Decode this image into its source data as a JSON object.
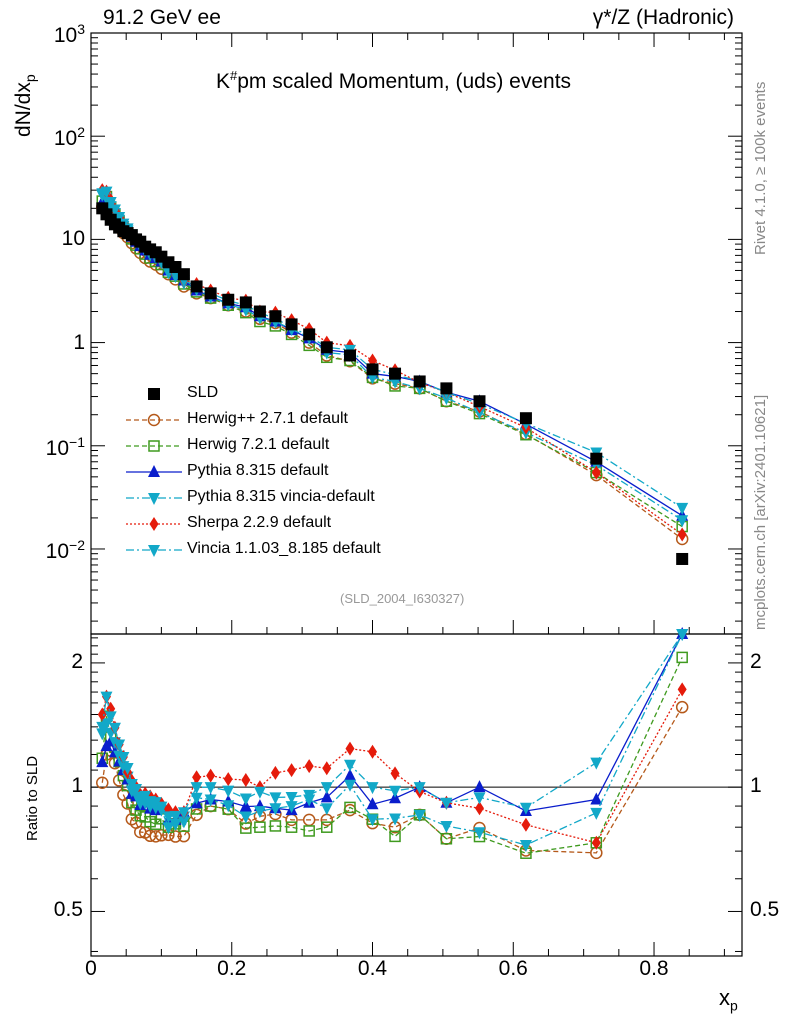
{
  "header": {
    "energy": "91.2 GeV ee",
    "process": "γ*/Z (Hadronic)"
  },
  "side_labels": {
    "rivet": "Rivet 4.1.0, ≥ 100k events",
    "mcplots": "mcplots.cern.ch [arXiv:2401.10621]"
  },
  "colors": {
    "SLD": "#000000",
    "Herwig++ 2.7.1 default": "#b5591a",
    "Herwig 7.2.1 default": "#3f9a1f",
    "Pythia 8.315 default": "#0a1dcc",
    "Pythia 8.315 vincia-default": "#12a8c8",
    "Sherpa 2.2.9 default": "#e51b0b",
    "Vincia 1.1.03_8.185 default": "#12a8c8"
  },
  "chart_data": [
    {
      "id": "main",
      "type": "scatter",
      "title": "K#pm scaled Momentum, (uds) events",
      "title_parts": {
        "base": "K",
        "sup": "#",
        "rest": "pm scaled Momentum, (uds) events"
      },
      "ylabel": "dN/dxp",
      "ylabel_parts": {
        "base": "dN/dx",
        "sub": "p"
      },
      "yscale": "log",
      "ylim": [
        0.0015,
        1000
      ],
      "xlim": [
        0,
        0.925
      ],
      "analysis_tag": "(SLD_2004_I630327)",
      "y_ticks": [
        {
          "v": 1000,
          "base": "10",
          "exp": "3"
        },
        {
          "v": 100,
          "base": "10",
          "exp": "2"
        },
        {
          "v": 10,
          "base": "10",
          "exp": ""
        },
        {
          "v": 1,
          "base": "1",
          "exp": ""
        },
        {
          "v": 0.1,
          "base": "10",
          "exp": "−1"
        },
        {
          "v": 0.01,
          "base": "10",
          "exp": "−2"
        }
      ],
      "legend": [
        "SLD",
        "Herwig++ 2.7.1 default",
        "Herwig 7.2.1 default",
        "Pythia 8.315 default",
        "Pythia 8.315 vincia-default",
        "Sherpa 2.2.9 default",
        "Vincia 1.1.03_8.185 default"
      ],
      "legend_position": "lower-left",
      "x": [
        0.016,
        0.022,
        0.028,
        0.034,
        0.04,
        0.046,
        0.052,
        0.058,
        0.064,
        0.07,
        0.077,
        0.084,
        0.092,
        0.1,
        0.11,
        0.12,
        0.132,
        0.15,
        0.17,
        0.195,
        0.22,
        0.24,
        0.262,
        0.285,
        0.31,
        0.335,
        0.368,
        0.4,
        0.432,
        0.467,
        0.505,
        0.552,
        0.618,
        0.718,
        0.84
      ],
      "series": [
        {
          "name": "SLD",
          "marker": "square",
          "line": "none",
          "values": [
            20,
            17.5,
            15.5,
            14,
            13,
            12,
            11.5,
            11,
            10,
            9.5,
            8.5,
            8,
            7.5,
            6.8,
            6,
            5.4,
            4.6,
            3.5,
            3.0,
            2.6,
            2.45,
            2.0,
            1.8,
            1.5,
            1.2,
            0.9,
            0.75,
            0.55,
            0.5,
            0.42,
            0.36,
            0.27,
            0.185,
            0.075,
            0.008
          ]
        },
        {
          "name": "Herwig++ 2.7.1 default",
          "marker": "circle-open",
          "line": "dashed",
          "values": [
            20.5,
            21,
            19,
            16,
            13.5,
            11.5,
            10.5,
            9.2,
            8.2,
            7.4,
            6.6,
            6.1,
            5.7,
            5.2,
            4.6,
            4.1,
            3.5,
            3.0,
            2.7,
            2.3,
            2.0,
            1.7,
            1.55,
            1.25,
            1.0,
            0.75,
            0.66,
            0.45,
            0.4,
            0.36,
            0.27,
            0.215,
            0.13,
            0.052,
            0.0125
          ]
        },
        {
          "name": "Herwig 7.2.1 default",
          "marker": "square-open",
          "line": "dashed",
          "values": [
            23.5,
            26,
            20.5,
            17.5,
            15,
            12.8,
            11.6,
            10.1,
            8.8,
            8.1,
            7.2,
            6.6,
            6.1,
            5.7,
            4.8,
            4.4,
            3.7,
            3.1,
            2.7,
            2.3,
            1.95,
            1.6,
            1.45,
            1.2,
            0.94,
            0.72,
            0.67,
            0.46,
            0.38,
            0.36,
            0.27,
            0.205,
            0.128,
            0.055,
            0.0165
          ]
        },
        {
          "name": "Pythia 8.315 default",
          "marker": "triangle-up",
          "line": "solid",
          "values": [
            23,
            22,
            20,
            17,
            15,
            13.2,
            12,
            10.6,
            9.5,
            8.6,
            7.8,
            7.1,
            6.6,
            6.1,
            5.0,
            4.5,
            4.0,
            3.2,
            2.8,
            2.4,
            2.2,
            1.8,
            1.6,
            1.32,
            1.1,
            0.85,
            0.8,
            0.5,
            0.47,
            0.42,
            0.33,
            0.27,
            0.162,
            0.07,
            0.021
          ]
        },
        {
          "name": "Pythia 8.315 vincia-default",
          "marker": "triangle-down",
          "line": "dashdot",
          "values": [
            27,
            25,
            21,
            18,
            15.5,
            13.5,
            12.2,
            10.8,
            9.6,
            8.7,
            7.8,
            7.2,
            6.7,
            6.0,
            4.8,
            4.4,
            3.8,
            3.3,
            2.8,
            2.35,
            2.08,
            1.75,
            1.6,
            1.35,
            1.12,
            0.8,
            0.76,
            0.46,
            0.42,
            0.36,
            0.29,
            0.21,
            0.134,
            0.065,
            0.019
          ]
        },
        {
          "name": "Sherpa 2.2.9 default",
          "marker": "diamond",
          "line": "dotted",
          "values": [
            30,
            29,
            24,
            19.5,
            16.5,
            14.2,
            12.5,
            11.4,
            10,
            9.1,
            8.2,
            7.6,
            7.0,
            6.2,
            5.3,
            4.7,
            4.0,
            3.7,
            3.2,
            2.72,
            2.55,
            2.0,
            1.95,
            1.65,
            1.35,
            1.0,
            0.93,
            0.67,
            0.54,
            0.41,
            0.33,
            0.24,
            0.15,
            0.055,
            0.0138
          ]
        },
        {
          "name": "Vincia 1.1.03_8.185 default",
          "marker": "triangle-down",
          "line": "dashdot",
          "values": [
            28,
            29,
            23,
            19.5,
            16.5,
            14.2,
            12.8,
            11.2,
            9.9,
            9.0,
            8.1,
            7.4,
            6.9,
            6.1,
            5.1,
            4.6,
            4.0,
            3.5,
            3.0,
            2.55,
            2.3,
            1.95,
            1.7,
            1.42,
            1.15,
            0.9,
            0.85,
            0.55,
            0.49,
            0.42,
            0.33,
            0.255,
            0.165,
            0.086,
            0.025
          ]
        }
      ]
    },
    {
      "id": "ratio",
      "type": "scatter",
      "ylabel": "Ratio to SLD",
      "xlabel": "xp",
      "xlabel_parts": {
        "base": "x",
        "sub": "p"
      },
      "yscale": "log",
      "ylim": [
        0.39,
        2.35
      ],
      "xlim": [
        0,
        0.925
      ],
      "y_ticks": [
        0.5,
        1,
        2
      ],
      "x_ticks": [
        0,
        0.2,
        0.4,
        0.6,
        0.8
      ],
      "reference_line": 1
    }
  ]
}
